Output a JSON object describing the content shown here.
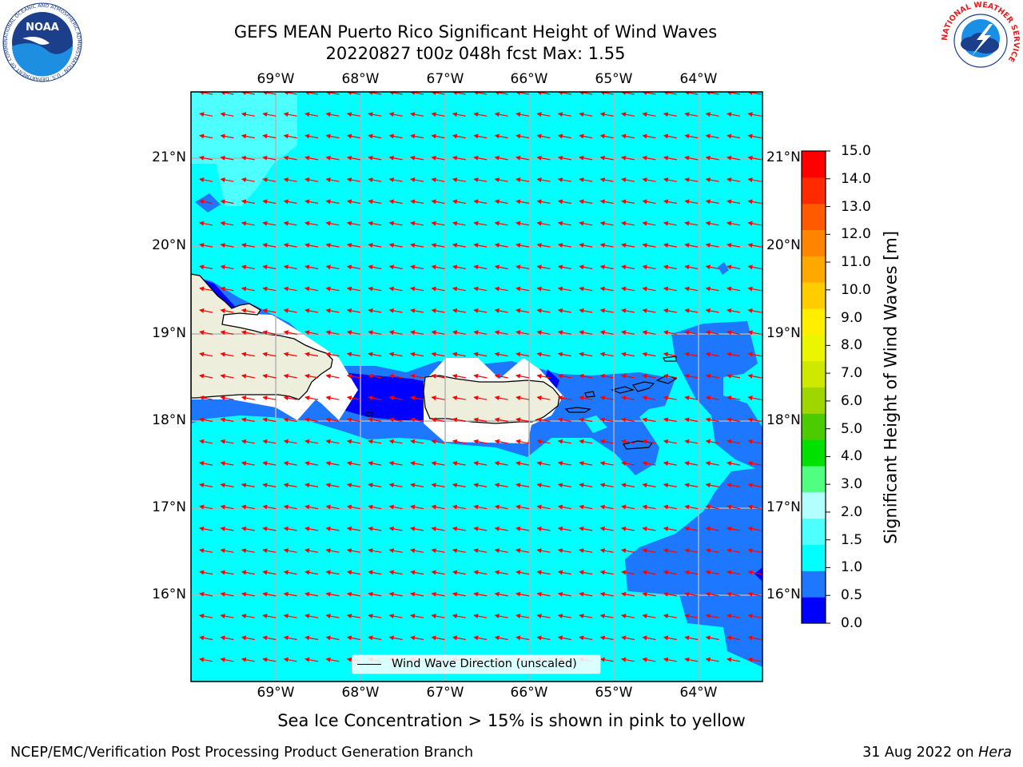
{
  "header": {
    "title_line1": "GEFS MEAN Puerto Rico Significant Height of Wind Waves",
    "title_line2": "20220827 t00z 048h fcst   Max: 1.55"
  },
  "map": {
    "lon_labels": [
      "69°W",
      "68°W",
      "67°W",
      "66°W",
      "65°W",
      "64°W"
    ],
    "lat_labels": [
      "21°N",
      "20°N",
      "19°N",
      "18°N",
      "17°N",
      "16°N"
    ],
    "colors": {
      "ocean_light": "#00ffff",
      "ocean_pale": "#4dffff",
      "shallow_blue": "#1e78ff",
      "deep_blue": "#0000ff",
      "land": "#eeeedd",
      "arrow": "#ff0000",
      "grid": "#b3b3b3"
    }
  },
  "colorbar": {
    "label": "Significant Height of Wind Waves [m]",
    "ticks": [
      "15.0",
      "14.0",
      "13.0",
      "12.0",
      "11.0",
      "10.0",
      "9.0",
      "8.0",
      "7.0",
      "6.0",
      "5.0",
      "4.0",
      "3.0",
      "2.0",
      "1.5",
      "1.0",
      "0.5",
      "0.0"
    ],
    "colors_bottom_to_top": [
      "#0000ff",
      "#1e78ff",
      "#00ffff",
      "#4dffff",
      "#b3ffff",
      "#50ff80",
      "#00e100",
      "#4ccc00",
      "#a0d600",
      "#cfe800",
      "#ebf500",
      "#ffee00",
      "#ffcc00",
      "#ffa800",
      "#ff8400",
      "#ff5a00",
      "#ff2a00",
      "#ff0000"
    ]
  },
  "legend": {
    "label": "Wind Wave Direction (unscaled)"
  },
  "notes": {
    "sea_ice": "Sea Ice Concentration > 15% is shown in pink to yellow"
  },
  "footer": {
    "left": "NCEP/EMC/Verification Post Processing Product Generation Branch",
    "date": "31 Aug 2022 on",
    "machine": "Hera"
  },
  "logos": {
    "noaa_text": "NOAA",
    "noaa_ring": "NATIONAL OCEANIC AND ATMOSPHERIC ADMINISTRATION · U.S. DEPARTMENT OF COMMERCE",
    "nws_ring": "NATIONAL WEATHER SERVICE"
  }
}
